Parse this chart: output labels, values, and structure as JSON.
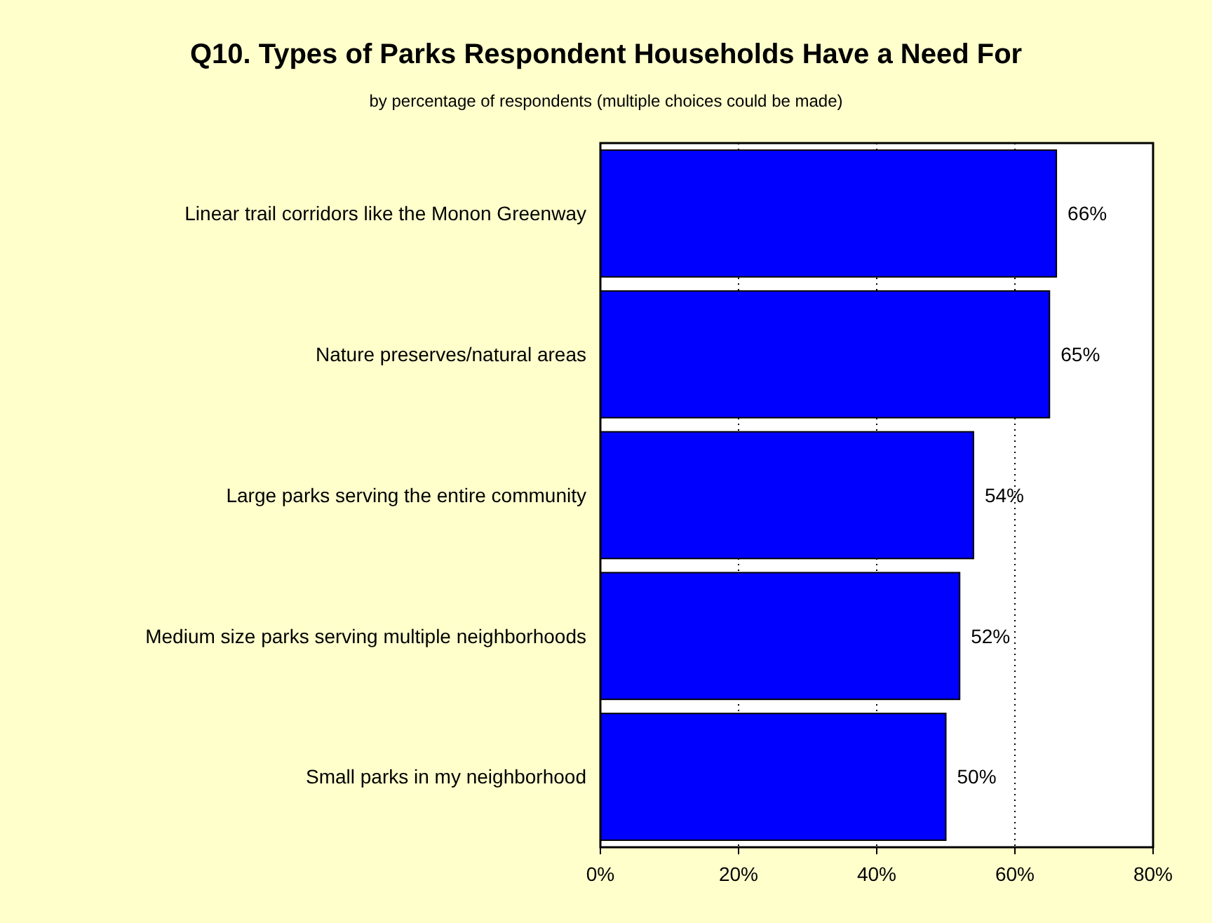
{
  "chart_data": {
    "type": "bar",
    "orientation": "horizontal",
    "title": "Q10. Types of Parks Respondent Households Have a Need For",
    "subtitle": "by percentage of respondents (multiple choices could be made)",
    "categories": [
      "Linear trail corridors like the Monon Greenway",
      "Nature preserves/natural areas",
      "Large parks serving the entire community",
      "Medium size parks serving multiple neighborhoods",
      "Small parks in my neighborhood"
    ],
    "values": [
      66,
      65,
      54,
      52,
      50
    ],
    "value_labels": [
      "66%",
      "65%",
      "54%",
      "52%",
      "50%"
    ],
    "color": "#0000ff",
    "xlim": [
      0,
      80
    ],
    "xticks": [
      {
        "value": 0,
        "label": "0%"
      },
      {
        "value": 20,
        "label": "20%"
      },
      {
        "value": 40,
        "label": "40%"
      },
      {
        "value": 60,
        "label": "60%"
      },
      {
        "value": 80,
        "label": "80%"
      }
    ],
    "grid": "x"
  }
}
